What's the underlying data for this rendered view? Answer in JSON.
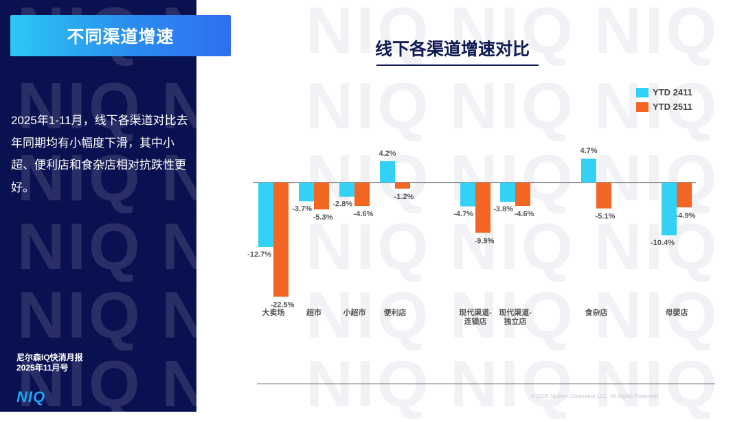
{
  "header": {
    "title": "不同渠道增速"
  },
  "summary": {
    "text": "2025年1-11月，线下各渠道对比去年同期均有小幅度下滑，其中小超、便利店和食杂店相对抗跌性更好。"
  },
  "footer": {
    "report_name": "尼尔森IQ快消月报",
    "report_date": "2025年11月号",
    "logo_text": "NIQ",
    "copyright": "© 2025 Nielsen Consumer LLC. All Rights Reserved."
  },
  "watermark": {
    "text": "NIQ"
  },
  "colors": {
    "navy": "#0a1150",
    "cyan": "#33d1f5",
    "orange": "#f26522"
  },
  "chart_data": {
    "type": "bar",
    "title": "线下各渠道增速对比",
    "legend_position": "top-right",
    "categories": [
      {
        "name": "大卖场",
        "lines": [
          "大卖场"
        ]
      },
      {
        "name": "超市",
        "lines": [
          "超市"
        ]
      },
      {
        "name": "小超市",
        "lines": [
          "小超市"
        ]
      },
      {
        "name": "便利店",
        "lines": [
          "便利店"
        ]
      },
      {
        "name": "现代渠道-连锁店",
        "lines": [
          "现代渠道-",
          "连锁店"
        ]
      },
      {
        "name": "现代渠道-独立店",
        "lines": [
          "现代渠道-",
          "独立店"
        ]
      },
      {
        "name": "食杂店",
        "lines": [
          "食杂店"
        ]
      },
      {
        "name": "母婴店",
        "lines": [
          "母婴店"
        ]
      }
    ],
    "series": [
      {
        "name": "YTD 2411",
        "color": "#33d1f5",
        "values": [
          -12.7,
          -3.7,
          -2.8,
          4.2,
          -4.7,
          -3.8,
          4.7,
          -10.4
        ],
        "labels": [
          "-12.7%",
          "-3.7%",
          "-2.8%",
          "4.2%",
          "-4.7%",
          "-3.8%",
          "4.7%",
          "-10.4%"
        ]
      },
      {
        "name": "YTD 2511",
        "color": "#f26522",
        "values": [
          -22.5,
          -5.3,
          -4.6,
          -1.2,
          -9.9,
          -4.6,
          -5.1,
          -4.9
        ],
        "labels": [
          "-22.5%",
          "-5.3%",
          "-4.6%",
          "-1.2%",
          "-9.9%",
          "-4.6%",
          "-5.1%",
          "-4.9%"
        ]
      }
    ],
    "unit": "%"
  }
}
